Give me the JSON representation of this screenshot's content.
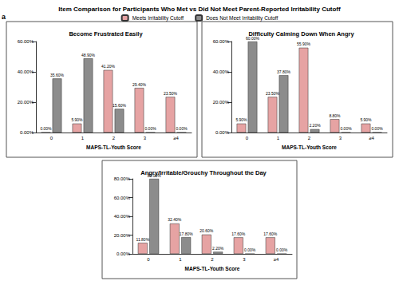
{
  "figure": {
    "title": "Item Comparison for Participants Who Met vs Did Not Meet Parent-Reported Irritability Cutoff",
    "panel_label": "a",
    "legend": "top"
  },
  "chart_data": [
    {
      "type": "bar",
      "title": "Become Frustrated Easily",
      "x_label": "MAPS-TL-Youth Score",
      "categories": [
        "0",
        "1",
        "2",
        "3",
        "≥4"
      ],
      "series": [
        {
          "name": "Meets Irritability Cutoff",
          "color": "#e6a3a3",
          "values": [
            0,
            5.9,
            41.2,
            29.4,
            23.5
          ],
          "value_labels": [
            "0.00%",
            "5.90%",
            "41.20%",
            "29.40%",
            "23.50%"
          ]
        },
        {
          "name": "Does Not Meet Irritability Cutoff",
          "color": "#8c8c8c",
          "values": [
            35.6,
            48.9,
            15.6,
            0,
            0
          ],
          "value_labels": [
            "35.60%",
            "48.90%",
            "15.60%",
            "0.00%",
            "0.00%"
          ]
        }
      ],
      "ylim": [
        0,
        60
      ],
      "yticks": [
        {
          "value": 0,
          "label": "0.00%"
        },
        {
          "value": 20,
          "label": "20.00%"
        },
        {
          "value": 40,
          "label": "40.00%"
        },
        {
          "value": 60,
          "label": "60.00%"
        }
      ],
      "data_labels": true,
      "grid": false
    },
    {
      "type": "bar",
      "title": "Difficulty Calming Down When Angry",
      "x_label": "MAPS-TL-Youth Score",
      "categories": [
        "0",
        "1",
        "2",
        "3",
        "≥4"
      ],
      "series": [
        {
          "name": "Meets Irritability Cutoff",
          "color": "#e6a3a3",
          "values": [
            5.9,
            23.5,
            55.9,
            8.8,
            5.9
          ],
          "value_labels": [
            "5.90%",
            "23.50%",
            "55.90%",
            "8.80%",
            "5.90%"
          ]
        },
        {
          "name": "Does Not Meet Irritability Cutoff",
          "color": "#8c8c8c",
          "values": [
            60,
            37.8,
            2.2,
            0,
            0
          ],
          "value_labels": [
            "60.00%",
            "37.80%",
            "2.20%",
            "0.00%",
            "0.00%"
          ]
        }
      ],
      "ylim": [
        0,
        60
      ],
      "yticks": [
        {
          "value": 0,
          "label": "0.00%"
        },
        {
          "value": 20,
          "label": "20.00%"
        },
        {
          "value": 40,
          "label": "40.00%"
        },
        {
          "value": 60,
          "label": "60.00%"
        }
      ],
      "data_labels": true,
      "grid": false
    },
    {
      "type": "bar",
      "title": "Angry/Irritable/Grouchy Throughout the Day",
      "x_label": "MAPS-TL-Youth Score",
      "categories": [
        "0",
        "1",
        "2",
        "3",
        "≥4"
      ],
      "series": [
        {
          "name": "Meets Irritability Cutoff",
          "color": "#e6a3a3",
          "values": [
            11.8,
            32.4,
            20.6,
            17.6,
            17.6
          ],
          "value_labels": [
            "11.80%",
            "32.40%",
            "20.60%",
            "17.60%",
            "17.60%"
          ]
        },
        {
          "name": "Does Not Meet Irritability Cutoff",
          "color": "#8c8c8c",
          "values": [
            80,
            17.8,
            2.2,
            0,
            0
          ],
          "value_labels": [
            "80.00%",
            "17.80%",
            "2.20%",
            "0.00%",
            "0.00%"
          ]
        }
      ],
      "ylim": [
        0,
        80
      ],
      "yticks": [
        {
          "value": 0,
          "label": "0.00%"
        },
        {
          "value": 20,
          "label": "20.00%"
        },
        {
          "value": 40,
          "label": "40.00%"
        },
        {
          "value": 60,
          "label": "60.00%"
        },
        {
          "value": 80,
          "label": "80.00%"
        }
      ],
      "data_labels": true,
      "grid": false
    }
  ]
}
